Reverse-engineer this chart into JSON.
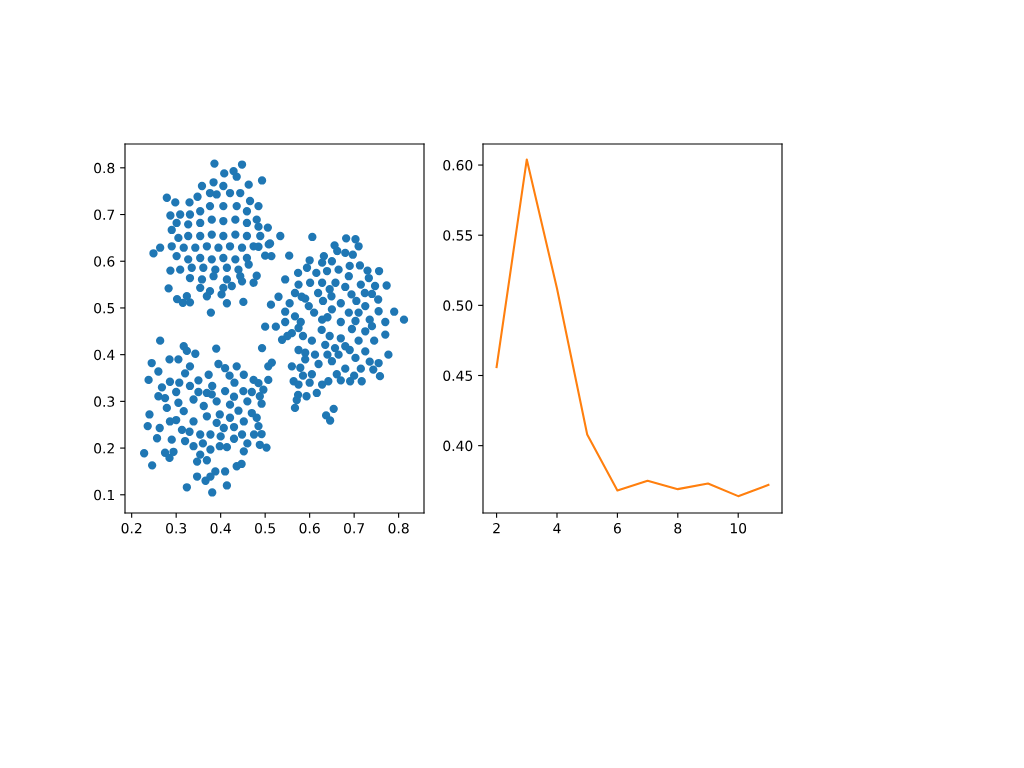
{
  "chart_data": [
    {
      "type": "scatter",
      "color": "#1f77b4",
      "marker": "circle",
      "x": [
        0.386,
        0.448,
        0.408,
        0.436,
        0.493,
        0.384,
        0.279,
        0.298,
        0.358,
        0.348,
        0.33,
        0.463,
        0.466,
        0.485,
        0.506,
        0.511,
        0.5,
        0.514,
        0.249,
        0.264,
        0.287,
        0.29,
        0.29,
        0.287,
        0.283,
        0.302,
        0.315,
        0.331,
        0.378,
        0.414,
        0.451,
        0.474,
        0.481,
        0.485,
        0.489,
        0.534,
        0.508,
        0.485,
        0.554,
        0.406,
        0.421,
        0.391,
        0.444,
        0.376,
        0.406,
        0.436,
        0.459,
        0.354,
        0.331,
        0.309,
        0.301,
        0.327,
        0.354,
        0.38,
        0.406,
        0.433,
        0.459,
        0.481,
        0.459,
        0.433,
        0.406,
        0.38,
        0.354,
        0.327,
        0.305,
        0.317,
        0.343,
        0.369,
        0.395,
        0.421,
        0.448,
        0.474,
        0.301,
        0.327,
        0.354,
        0.38,
        0.406,
        0.433,
        0.459,
        0.309,
        0.335,
        0.361,
        0.388,
        0.414,
        0.44,
        0.463,
        0.331,
        0.358,
        0.384,
        0.414,
        0.444,
        0.354,
        0.376,
        0.406,
        0.425,
        0.448,
        0.369,
        0.402,
        0.324,
        0.376,
        0.429,
        0.606,
        0.682,
        0.703,
        0.71,
        0.656,
        0.662,
        0.632,
        0.68,
        0.697,
        0.6,
        0.594,
        0.628,
        0.639,
        0.665,
        0.713,
        0.756,
        0.574,
        0.545,
        0.575,
        0.601,
        0.628,
        0.658,
        0.688,
        0.733,
        0.773,
        0.747,
        0.567,
        0.53,
        0.513,
        0.582,
        0.619,
        0.649,
        0.694,
        0.724,
        0.754,
        0.79,
        0.812,
        0.545,
        0.598,
        0.65,
        0.688,
        0.725,
        0.755,
        0.567,
        0.628,
        0.5,
        0.524,
        0.703,
        0.74,
        0.493,
        0.538,
        0.56,
        0.575,
        0.627,
        0.695,
        0.725,
        0.77,
        0.777,
        0.755,
        0.758,
        0.743,
        0.717,
        0.691,
        0.703,
        0.725,
        0.657,
        0.68,
        0.65,
        0.661,
        0.642,
        0.628,
        0.616,
        0.605,
        0.579,
        0.56,
        0.593,
        0.574,
        0.567,
        0.571,
        0.564,
        0.575,
        0.59,
        0.612,
        0.635,
        0.654,
        0.637,
        0.646,
        0.585,
        0.605,
        0.645,
        0.67,
        0.71,
        0.745,
        0.575,
        0.665,
        0.69,
        0.735,
        0.715,
        0.59,
        0.62,
        0.64,
        0.68,
        0.7,
        0.67,
        0.6,
        0.585,
        0.58,
        0.61,
        0.64,
        0.67,
        0.71,
        0.735,
        0.77,
        0.59,
        0.63,
        0.67,
        0.705,
        0.74,
        0.645,
        0.68,
        0.715,
        0.615,
        0.65,
        0.69,
        0.73,
        0.555,
        0.545,
        0.55,
        0.507,
        0.515,
        0.507,
        0.485,
        0.488,
        0.492,
        0.496,
        0.481,
        0.485,
        0.492,
        0.488,
        0.503,
        0.264,
        0.317,
        0.324,
        0.343,
        0.39,
        0.245,
        0.285,
        0.305,
        0.331,
        0.395,
        0.41,
        0.436,
        0.238,
        0.26,
        0.268,
        0.286,
        0.307,
        0.331,
        0.373,
        0.381,
        0.431,
        0.452,
        0.474,
        0.451,
        0.26,
        0.275,
        0.24,
        0.279,
        0.305,
        0.317,
        0.339,
        0.362,
        0.391,
        0.41,
        0.421,
        0.236,
        0.263,
        0.286,
        0.313,
        0.339,
        0.369,
        0.391,
        0.421,
        0.452,
        0.257,
        0.29,
        0.32,
        0.354,
        0.377,
        0.407,
        0.448,
        0.475,
        0.228,
        0.246,
        0.275,
        0.285,
        0.294,
        0.339,
        0.354,
        0.377,
        0.398,
        0.414,
        0.452,
        0.347,
        0.369,
        0.388,
        0.41,
        0.436,
        0.447,
        0.347,
        0.366,
        0.377,
        0.324,
        0.381,
        0.414,
        0.369,
        0.398,
        0.43,
        0.46,
        0.44,
        0.47,
        0.35,
        0.3,
        0.32,
        0.35,
        0.42,
        0.47,
        0.43,
        0.43,
        0.46,
        0.33,
        0.3,
        0.36,
        0.4,
        0.38
      ],
      "values": [
        0.809,
        0.807,
        0.788,
        0.781,
        0.773,
        0.769,
        0.736,
        0.726,
        0.761,
        0.738,
        0.726,
        0.764,
        0.729,
        0.718,
        0.672,
        0.638,
        0.612,
        0.611,
        0.617,
        0.629,
        0.698,
        0.667,
        0.632,
        0.58,
        0.542,
        0.519,
        0.511,
        0.512,
        0.49,
        0.51,
        0.513,
        0.554,
        0.569,
        0.674,
        0.654,
        0.654,
        0.636,
        0.631,
        0.612,
        0.761,
        0.746,
        0.743,
        0.746,
        0.718,
        0.718,
        0.718,
        0.707,
        0.707,
        0.7,
        0.7,
        0.682,
        0.679,
        0.682,
        0.689,
        0.686,
        0.689,
        0.682,
        0.689,
        0.654,
        0.657,
        0.654,
        0.657,
        0.654,
        0.654,
        0.65,
        0.629,
        0.629,
        0.632,
        0.629,
        0.632,
        0.629,
        0.632,
        0.611,
        0.604,
        0.607,
        0.604,
        0.607,
        0.604,
        0.607,
        0.582,
        0.586,
        0.586,
        0.582,
        0.586,
        0.582,
        0.593,
        0.564,
        0.561,
        0.568,
        0.561,
        0.568,
        0.543,
        0.536,
        0.543,
        0.547,
        0.557,
        0.525,
        0.529,
        0.525,
        0.746,
        0.793,
        0.652,
        0.649,
        0.647,
        0.632,
        0.634,
        0.622,
        0.611,
        0.618,
        0.614,
        0.602,
        0.586,
        0.597,
        0.579,
        0.582,
        0.591,
        0.579,
        0.575,
        0.561,
        0.55,
        0.554,
        0.554,
        0.554,
        0.568,
        0.564,
        0.548,
        0.547,
        0.532,
        0.524,
        0.507,
        0.524,
        0.532,
        0.525,
        0.529,
        0.532,
        0.518,
        0.492,
        0.475,
        0.492,
        0.504,
        0.497,
        0.49,
        0.504,
        0.493,
        0.482,
        0.475,
        0.46,
        0.46,
        0.472,
        0.461,
        0.414,
        0.432,
        0.446,
        0.457,
        0.453,
        0.455,
        0.45,
        0.443,
        0.4,
        0.382,
        0.354,
        0.368,
        0.343,
        0.343,
        0.393,
        0.407,
        0.414,
        0.418,
        0.386,
        0.358,
        0.343,
        0.336,
        0.318,
        0.358,
        0.372,
        0.375,
        0.311,
        0.314,
        0.286,
        0.303,
        0.343,
        0.336,
        0.404,
        0.4,
        0.421,
        0.284,
        0.27,
        0.259,
        0.44,
        0.43,
        0.44,
        0.435,
        0.43,
        0.43,
        0.41,
        0.4,
        0.41,
        0.385,
        0.37,
        0.39,
        0.38,
        0.4,
        0.37,
        0.355,
        0.345,
        0.34,
        0.355,
        0.47,
        0.49,
        0.48,
        0.47,
        0.49,
        0.475,
        0.47,
        0.52,
        0.515,
        0.51,
        0.515,
        0.53,
        0.54,
        0.545,
        0.55,
        0.575,
        0.6,
        0.59,
        0.58,
        0.51,
        0.47,
        0.44,
        0.375,
        0.383,
        0.346,
        0.339,
        0.311,
        0.295,
        0.325,
        0.265,
        0.247,
        0.23,
        0.207,
        0.201,
        0.43,
        0.418,
        0.408,
        0.402,
        0.413,
        0.382,
        0.39,
        0.39,
        0.375,
        0.38,
        0.371,
        0.375,
        0.346,
        0.364,
        0.33,
        0.342,
        0.34,
        0.333,
        0.357,
        0.333,
        0.34,
        0.357,
        0.346,
        0.322,
        0.311,
        0.307,
        0.272,
        0.286,
        0.297,
        0.279,
        0.304,
        0.29,
        0.3,
        0.322,
        0.293,
        0.247,
        0.243,
        0.257,
        0.239,
        0.257,
        0.268,
        0.254,
        0.265,
        0.257,
        0.221,
        0.218,
        0.215,
        0.229,
        0.229,
        0.243,
        0.229,
        0.229,
        0.189,
        0.163,
        0.19,
        0.179,
        0.192,
        0.204,
        0.186,
        0.197,
        0.204,
        0.202,
        0.193,
        0.171,
        0.174,
        0.15,
        0.15,
        0.161,
        0.166,
        0.139,
        0.13,
        0.139,
        0.116,
        0.105,
        0.12,
        0.318,
        0.272,
        0.31,
        0.3,
        0.28,
        0.275,
        0.32,
        0.32,
        0.36,
        0.345,
        0.355,
        0.32,
        0.22,
        0.245,
        0.21,
        0.235,
        0.26,
        0.21,
        0.225,
        0.315
      ],
      "xlim": [
        0.185,
        0.857
      ],
      "ylim": [
        0.061,
        0.851
      ],
      "xticks": [
        0.2,
        0.3,
        0.4,
        0.5,
        0.6,
        0.7,
        0.8
      ],
      "yticks": [
        0.1,
        0.2,
        0.3,
        0.4,
        0.5,
        0.6,
        0.7,
        0.8
      ]
    },
    {
      "type": "line",
      "color": "#ff7f0e",
      "line_style": "solid",
      "x": [
        2,
        3,
        4,
        5,
        6,
        7,
        8,
        9,
        10,
        11
      ],
      "values": [
        0.456,
        0.604,
        0.512,
        0.408,
        0.368,
        0.375,
        0.369,
        0.373,
        0.364,
        0.372
      ],
      "xlim": [
        1.55,
        11.45
      ],
      "ylim": [
        0.352,
        0.615
      ],
      "xticks": [
        2,
        4,
        6,
        8,
        10
      ],
      "yticks": [
        {
          "value": 0.4,
          "label": "0.40"
        },
        0.45,
        {
          "value": 0.5,
          "label": "0.50"
        },
        0.55,
        {
          "value": 0.6,
          "label": "0.60"
        }
      ]
    }
  ]
}
